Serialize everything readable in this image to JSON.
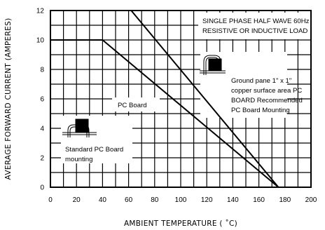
{
  "chart_data": {
    "type": "line",
    "xlabel": "AMBIENT  TEMPERATURE ( ˚C)",
    "ylabel": "AVERAGE FORWARD CURRENT  (AMPERES)",
    "xlim": [
      0,
      200
    ],
    "ylim": [
      0,
      12
    ],
    "xticks": [
      0,
      20,
      40,
      60,
      80,
      100,
      120,
      140,
      160,
      180,
      200
    ],
    "yticks": [
      0,
      2,
      4,
      6,
      8,
      10,
      12
    ],
    "grid": true,
    "series": [
      {
        "name": "Ground pane 1\" x 1\" copper surface area PC BOARD Recommended PC Board Mounting",
        "x": [
          0,
          62,
          175
        ],
        "y": [
          12,
          12,
          0
        ]
      },
      {
        "name": "Standard PC Board mounting",
        "x": [
          0,
          40,
          175
        ],
        "y": [
          10,
          10,
          0
        ]
      }
    ],
    "annotations": {
      "condition": [
        "SINGLE PHASE HALF WAVE 60Hz",
        "RESISTIVE OR INDUCTIVE LOAD"
      ],
      "pc_board": "PC Board",
      "ground_pane": [
        "Ground pane 1\" x 1\"",
        "copper surface area PC",
        "BOARD Recommended",
        "PC Board Mounting"
      ],
      "standard": [
        "Standard PC Board",
        "mounting"
      ]
    }
  }
}
